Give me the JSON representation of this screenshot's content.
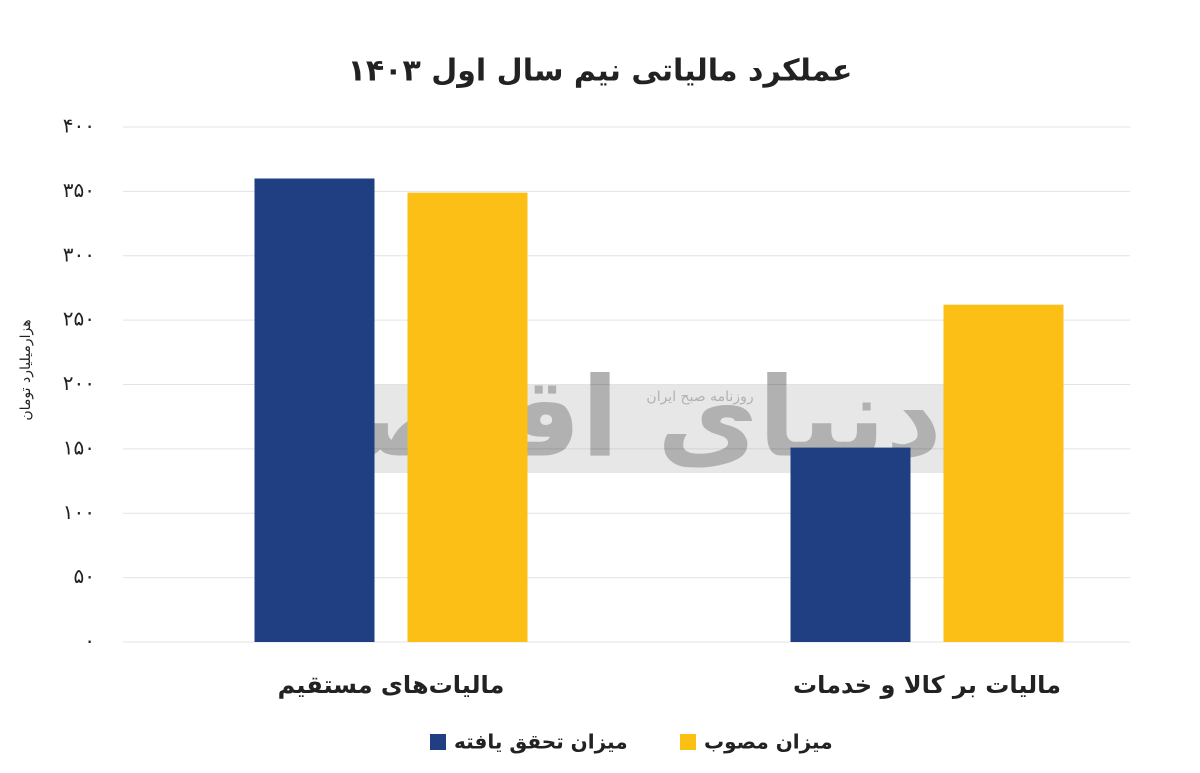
{
  "chart_data": {
    "type": "bar",
    "title": "عملکرد مالیاتی نیم سال اول ۱۴۰۳",
    "y_label": "هزارمیلیارد تومان",
    "watermark": "دنیای اقتصاد",
    "watermark_subtitle": "روزنامه صبح ایران",
    "categories": [
      "مالیات‌های مستقیم",
      "مالیات بر کالا و خدمات"
    ],
    "series": [
      {
        "name": "میزان تحقق یافته",
        "color": "#1f3f82",
        "values": [
          360,
          151
        ]
      },
      {
        "name": "میزان مصوب",
        "color": "#fbbf16",
        "values": [
          349,
          262
        ]
      }
    ],
    "ylim": [
      0,
      400
    ],
    "yticks": [
      {
        "value": 0,
        "label": "۰"
      },
      {
        "value": 50,
        "label": "۵۰"
      },
      {
        "value": 100,
        "label": "۱۰۰"
      },
      {
        "value": 150,
        "label": "۱۵۰"
      },
      {
        "value": 200,
        "label": "۲۰۰"
      },
      {
        "value": 250,
        "label": "۲۵۰"
      },
      {
        "value": 300,
        "label": "۳۰۰"
      },
      {
        "value": 350,
        "label": "۳۵۰"
      },
      {
        "value": 400,
        "label": "۴۰۰"
      }
    ],
    "grid": true
  }
}
